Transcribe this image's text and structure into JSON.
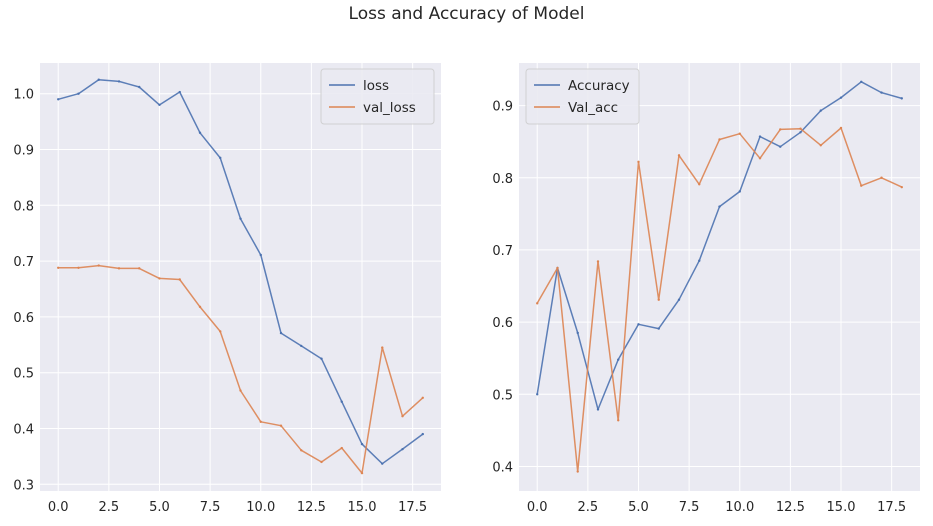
{
  "figure": {
    "title": "Loss and Accuracy of Model"
  },
  "colors": {
    "series1": "#4c72b0",
    "series2": "#dd8452",
    "plot_bg": "#eaeaf2",
    "grid": "#ffffff"
  },
  "chart_data": [
    {
      "type": "line",
      "title": "",
      "xlabel": "",
      "ylabel": "",
      "x": [
        0,
        1,
        2,
        3,
        4,
        5,
        6,
        7,
        8,
        9,
        10,
        11,
        12,
        13,
        14,
        15,
        16,
        17,
        18
      ],
      "xlim": [
        -0.9,
        18.9
      ],
      "ylim": [
        0.288,
        1.055
      ],
      "xticks": [
        0.0,
        2.5,
        5.0,
        7.5,
        10.0,
        12.5,
        15.0,
        17.5
      ],
      "xtick_labels": [
        "0.0",
        "2.5",
        "5.0",
        "7.5",
        "10.0",
        "12.5",
        "15.0",
        "17.5"
      ],
      "yticks": [
        0.3,
        0.4,
        0.5,
        0.6,
        0.7,
        0.8,
        0.9,
        1.0
      ],
      "ytick_labels": [
        "0.3",
        "0.4",
        "0.5",
        "0.6",
        "0.7",
        "0.8",
        "0.9",
        "1.0"
      ],
      "grid": true,
      "legend_position": "top-right",
      "series": [
        {
          "name": "loss",
          "color": "#4c72b0",
          "values": [
            0.99,
            1.0,
            1.025,
            1.022,
            1.012,
            0.98,
            1.003,
            0.93,
            0.885,
            0.776,
            0.711,
            0.571,
            0.548,
            0.525,
            0.448,
            0.372,
            0.337,
            0.363,
            0.39
          ]
        },
        {
          "name": "val_loss",
          "color": "#dd8452",
          "values": [
            0.688,
            0.688,
            0.692,
            0.687,
            0.687,
            0.669,
            0.667,
            0.618,
            0.574,
            0.468,
            0.412,
            0.405,
            0.361,
            0.34,
            0.365,
            0.32,
            0.545,
            0.422,
            0.455
          ]
        }
      ]
    },
    {
      "type": "line",
      "title": "",
      "xlabel": "",
      "ylabel": "",
      "x": [
        0,
        1,
        2,
        3,
        4,
        5,
        6,
        7,
        8,
        9,
        10,
        11,
        12,
        13,
        14,
        15,
        16,
        17,
        18
      ],
      "xlim": [
        -0.9,
        18.9
      ],
      "ylim": [
        0.366,
        0.959
      ],
      "xticks": [
        0.0,
        2.5,
        5.0,
        7.5,
        10.0,
        12.5,
        15.0,
        17.5
      ],
      "xtick_labels": [
        "0.0",
        "2.5",
        "5.0",
        "7.5",
        "10.0",
        "12.5",
        "15.0",
        "17.5"
      ],
      "yticks": [
        0.4,
        0.5,
        0.6,
        0.7,
        0.8,
        0.9
      ],
      "ytick_labels": [
        "0.4",
        "0.5",
        "0.6",
        "0.7",
        "0.8",
        "0.9"
      ],
      "grid": true,
      "legend_position": "top-left",
      "series": [
        {
          "name": "Accuracy",
          "color": "#4c72b0",
          "values": [
            0.5,
            0.675,
            0.585,
            0.479,
            0.548,
            0.597,
            0.591,
            0.631,
            0.685,
            0.76,
            0.781,
            0.857,
            0.843,
            0.863,
            0.893,
            0.911,
            0.933,
            0.918,
            0.91
          ]
        },
        {
          "name": "Val_acc",
          "color": "#dd8452",
          "values": [
            0.626,
            0.675,
            0.393,
            0.684,
            0.464,
            0.822,
            0.631,
            0.831,
            0.791,
            0.853,
            0.861,
            0.827,
            0.867,
            0.868,
            0.845,
            0.869,
            0.789,
            0.8,
            0.787
          ]
        }
      ]
    }
  ]
}
